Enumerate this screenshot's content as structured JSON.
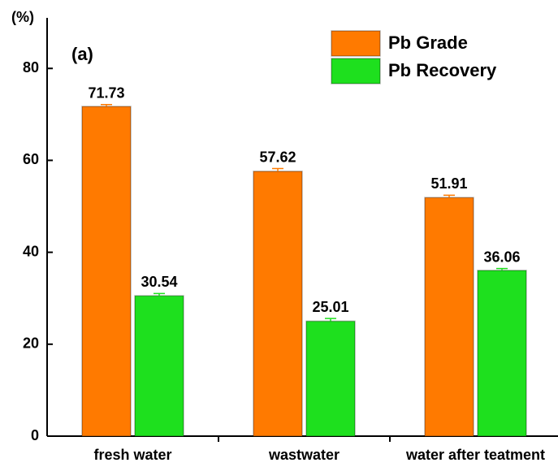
{
  "chart_data": {
    "type": "bar",
    "y_label": "(%)",
    "annotation": "(a)",
    "categories": [
      "fresh water",
      "wastwater",
      "water after teatment"
    ],
    "series": [
      {
        "name": "Pb Grade",
        "color": "#ff7a00",
        "values": [
          71.73,
          57.62,
          51.91
        ],
        "errors": [
          0.4,
          0.6,
          0.5
        ]
      },
      {
        "name": "Pb Recovery",
        "color": "#1ee01e",
        "values": [
          30.54,
          25.01,
          36.06
        ],
        "errors": [
          0.5,
          0.6,
          0.4
        ]
      }
    ],
    "ylim": [
      0,
      91
    ],
    "yticks": [
      0,
      20,
      40,
      60,
      80
    ],
    "legend": "upper right"
  }
}
